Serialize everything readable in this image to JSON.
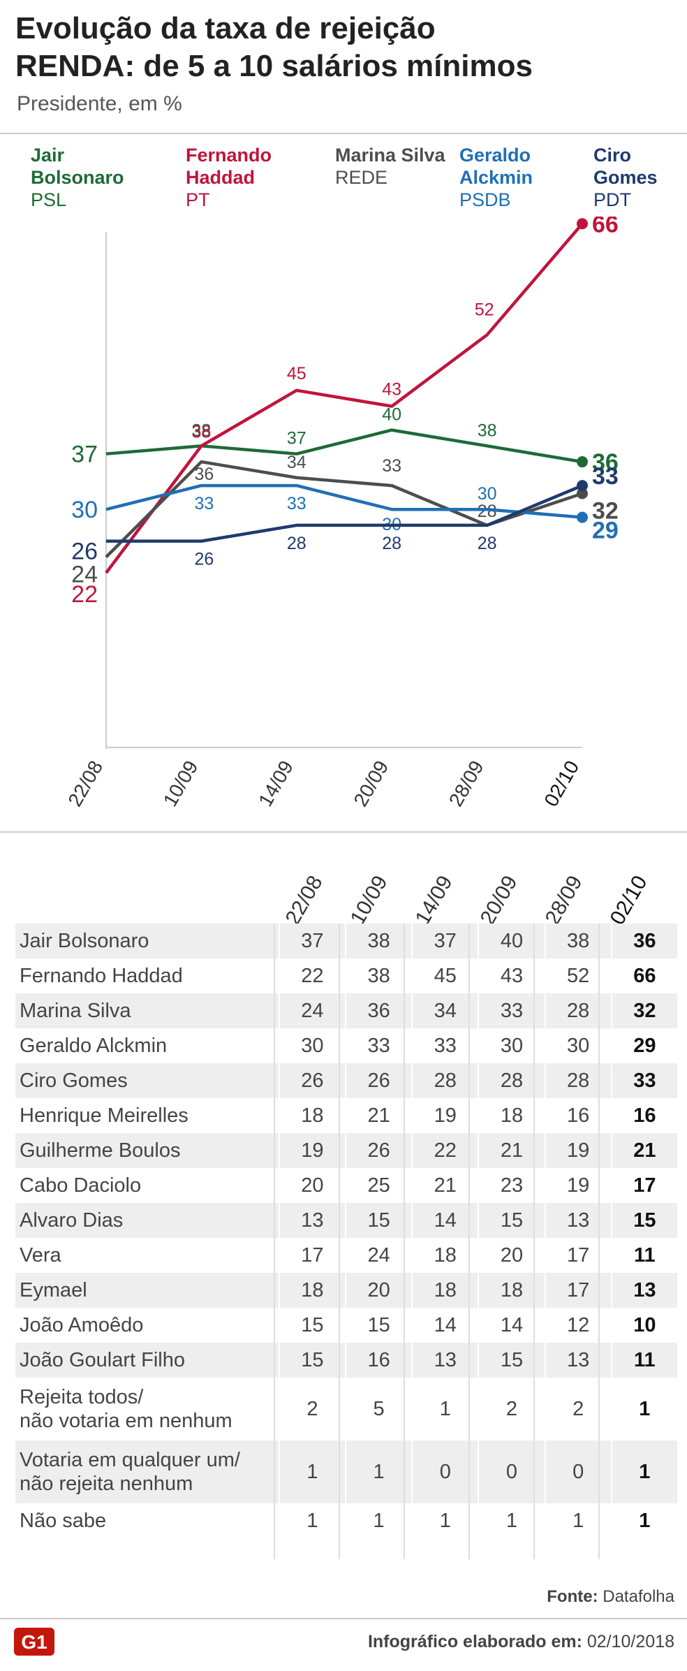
{
  "header": {
    "title_line1": "Evolução da taxa de rejeição",
    "title_line2": "RENDA: de 5 a 10 salários mínimos",
    "subtitle": "Presidente, em %"
  },
  "legend": [
    {
      "name": "Jair Bolsonaro",
      "party": "PSL",
      "color": "#1e6a37"
    },
    {
      "name": "Fernando Haddad",
      "party": "PT",
      "color": "#c0143c"
    },
    {
      "name": "Marina Silva",
      "party": "REDE",
      "color": "#4d4d4d"
    },
    {
      "name": "Geraldo Alckmin",
      "party": "PSDB",
      "color": "#1f6fb5"
    },
    {
      "name": "Ciro Gomes",
      "party": "PDT",
      "color": "#1f3a6e"
    }
  ],
  "chart_data": {
    "type": "line",
    "x": [
      "22/08",
      "10/09",
      "14/09",
      "20/09",
      "28/09",
      "02/10"
    ],
    "ylim": [
      0,
      70
    ],
    "grid": false,
    "series": [
      {
        "name": "Jair Bolsonaro",
        "color": "#1e6a37",
        "values": [
          37,
          38,
          37,
          40,
          38,
          36
        ]
      },
      {
        "name": "Fernando Haddad",
        "color": "#c0143c",
        "values": [
          22,
          38,
          45,
          43,
          52,
          66
        ]
      },
      {
        "name": "Marina Silva",
        "color": "#4d4d4d",
        "values": [
          24,
          36,
          34,
          33,
          28,
          32
        ]
      },
      {
        "name": "Geraldo Alckmin",
        "color": "#1f6fb5",
        "values": [
          30,
          33,
          33,
          30,
          30,
          29
        ]
      },
      {
        "name": "Ciro Gomes",
        "color": "#1f3a6e",
        "values": [
          26,
          26,
          28,
          28,
          28,
          33
        ]
      }
    ]
  },
  "table": {
    "columns": [
      "22/08",
      "10/09",
      "14/09",
      "20/09",
      "28/09",
      "02/10"
    ],
    "rows": [
      {
        "name": "Jair Bolsonaro",
        "values": [
          "37",
          "38",
          "37",
          "40",
          "38",
          "36"
        ]
      },
      {
        "name": "Fernando Haddad",
        "values": [
          "22",
          "38",
          "45",
          "43",
          "52",
          "66"
        ]
      },
      {
        "name": "Marina Silva",
        "values": [
          "24",
          "36",
          "34",
          "33",
          "28",
          "32"
        ]
      },
      {
        "name": "Geraldo Alckmin",
        "values": [
          "30",
          "33",
          "33",
          "30",
          "30",
          "29"
        ]
      },
      {
        "name": "Ciro Gomes",
        "values": [
          "26",
          "26",
          "28",
          "28",
          "28",
          "33"
        ]
      },
      {
        "name": "Henrique Meirelles",
        "values": [
          "18",
          "21",
          "19",
          "18",
          "16",
          "16"
        ]
      },
      {
        "name": "Guilherme Boulos",
        "values": [
          "19",
          "26",
          "22",
          "21",
          "19",
          "21"
        ]
      },
      {
        "name": "Cabo Daciolo",
        "values": [
          "20",
          "25",
          "21",
          "23",
          "19",
          "17"
        ]
      },
      {
        "name": "Alvaro Dias",
        "values": [
          "13",
          "15",
          "14",
          "15",
          "13",
          "15"
        ]
      },
      {
        "name": "Vera",
        "values": [
          "17",
          "24",
          "18",
          "20",
          "17",
          "11"
        ]
      },
      {
        "name": "Eymael",
        "values": [
          "18",
          "20",
          "18",
          "18",
          "17",
          "13"
        ]
      },
      {
        "name": "João Amoêdo",
        "values": [
          "15",
          "15",
          "14",
          "14",
          "12",
          "10"
        ]
      },
      {
        "name": "João Goulart Filho",
        "values": [
          "15",
          "16",
          "13",
          "15",
          "13",
          "11"
        ]
      },
      {
        "name": "Rejeita todos/\nnão votaria em nenhum",
        "values": [
          "2",
          "5",
          "1",
          "2",
          "2",
          "1"
        ]
      },
      {
        "name": "Votaria em qualquer um/\nnão rejeita nenhum",
        "values": [
          "1",
          "1",
          "0",
          "0",
          "0",
          "1"
        ]
      },
      {
        "name": "Não sabe",
        "values": [
          "1",
          "1",
          "1",
          "1",
          "1",
          "1"
        ]
      }
    ]
  },
  "source": {
    "label": "Fonte:",
    "value": "Datafolha"
  },
  "footer": {
    "logo": "G1",
    "credit_label": "Infográfico elaborado em:",
    "credit_date": "02/10/2018"
  }
}
